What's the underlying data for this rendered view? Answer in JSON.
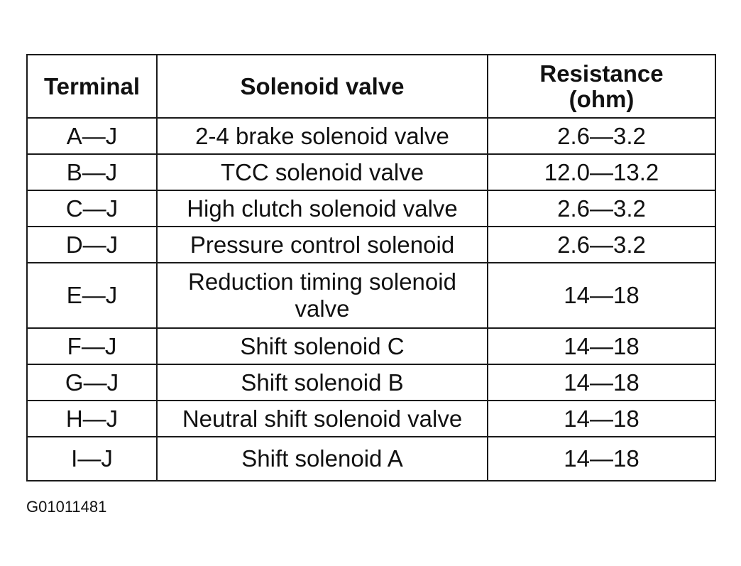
{
  "table": {
    "headers": {
      "terminal": "Terminal",
      "solenoid_valve": "Solenoid valve",
      "resistance": "Resistance (ohm)"
    },
    "rows": [
      {
        "terminal": "A—J",
        "solenoid_valve": "2-4 brake solenoid valve",
        "resistance": "2.6—3.2"
      },
      {
        "terminal": "B—J",
        "solenoid_valve": "TCC solenoid valve",
        "resistance": "12.0—13.2"
      },
      {
        "terminal": "C—J",
        "solenoid_valve": "High clutch solenoid valve",
        "resistance": "2.6—3.2"
      },
      {
        "terminal": "D—J",
        "solenoid_valve": "Pressure control solenoid",
        "resistance": "2.6—3.2"
      },
      {
        "terminal": "E—J",
        "solenoid_valve": "Reduction timing solenoid valve",
        "resistance": "14—18"
      },
      {
        "terminal": "F—J",
        "solenoid_valve": "Shift solenoid C",
        "resistance": "14—18"
      },
      {
        "terminal": "G—J",
        "solenoid_valve": "Shift solenoid B",
        "resistance": "14—18"
      },
      {
        "terminal": "H—J",
        "solenoid_valve": "Neutral shift solenoid valve",
        "resistance": "14—18"
      },
      {
        "terminal": "I—J",
        "solenoid_valve": "Shift solenoid A",
        "resistance": "14—18"
      }
    ]
  },
  "figure_id": "G01011481"
}
